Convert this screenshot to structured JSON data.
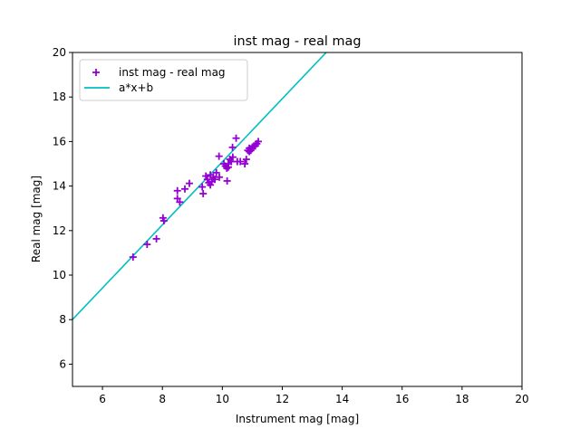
{
  "chart_data": {
    "type": "scatter",
    "title": "inst mag - real mag",
    "xlabel": "Instrument mag [mag]",
    "ylabel": "Real mag [mag]",
    "xlim": [
      5,
      20
    ],
    "ylim": [
      5,
      20
    ],
    "xticks": [
      6,
      8,
      10,
      12,
      14,
      16,
      18,
      20
    ],
    "yticks": [
      6,
      8,
      10,
      12,
      14,
      16,
      18,
      20
    ],
    "grid": false,
    "legend_position": "top-left",
    "series": [
      {
        "name": "inst mag - real mag",
        "kind": "scatter",
        "marker": "+",
        "color": "#9400d3",
        "points": [
          [
            7.02,
            10.81
          ],
          [
            7.49,
            11.38
          ],
          [
            7.8,
            11.63
          ],
          [
            8.02,
            12.57
          ],
          [
            8.05,
            12.44
          ],
          [
            8.5,
            13.79
          ],
          [
            8.5,
            13.44
          ],
          [
            8.58,
            13.28
          ],
          [
            8.75,
            13.87
          ],
          [
            8.9,
            14.12
          ],
          [
            9.36,
            13.66
          ],
          [
            9.33,
            13.96
          ],
          [
            10.16,
            14.23
          ],
          [
            10.46,
            16.15
          ],
          [
            10.34,
            15.74
          ],
          [
            9.89,
            15.34
          ],
          [
            9.5,
            14.3
          ],
          [
            9.6,
            14.5
          ],
          [
            9.7,
            14.4
          ],
          [
            9.55,
            14.15
          ],
          [
            9.65,
            14.2
          ],
          [
            9.8,
            14.6
          ],
          [
            9.9,
            14.4
          ],
          [
            9.45,
            14.45
          ],
          [
            9.75,
            14.3
          ],
          [
            9.6,
            14.05
          ],
          [
            10.1,
            14.9
          ],
          [
            10.2,
            15.0
          ],
          [
            10.15,
            14.8
          ],
          [
            10.25,
            15.2
          ],
          [
            10.3,
            15.1
          ],
          [
            10.35,
            15.3
          ],
          [
            10.05,
            15.0
          ],
          [
            10.2,
            14.85
          ],
          [
            10.5,
            15.1
          ],
          [
            10.6,
            15.1
          ],
          [
            10.75,
            15.0
          ],
          [
            10.8,
            15.2
          ],
          [
            10.85,
            15.6
          ],
          [
            10.9,
            15.7
          ],
          [
            10.95,
            15.6
          ],
          [
            11.0,
            15.7
          ],
          [
            11.05,
            15.8
          ],
          [
            11.1,
            15.8
          ],
          [
            11.15,
            15.9
          ],
          [
            11.2,
            16.0
          ],
          [
            10.9,
            15.55
          ],
          [
            11.0,
            15.75
          ]
        ]
      },
      {
        "name": "a*x+b",
        "kind": "line",
        "color": "#00bfbf",
        "slope": 1.417,
        "intercept": 0.92
      }
    ]
  }
}
